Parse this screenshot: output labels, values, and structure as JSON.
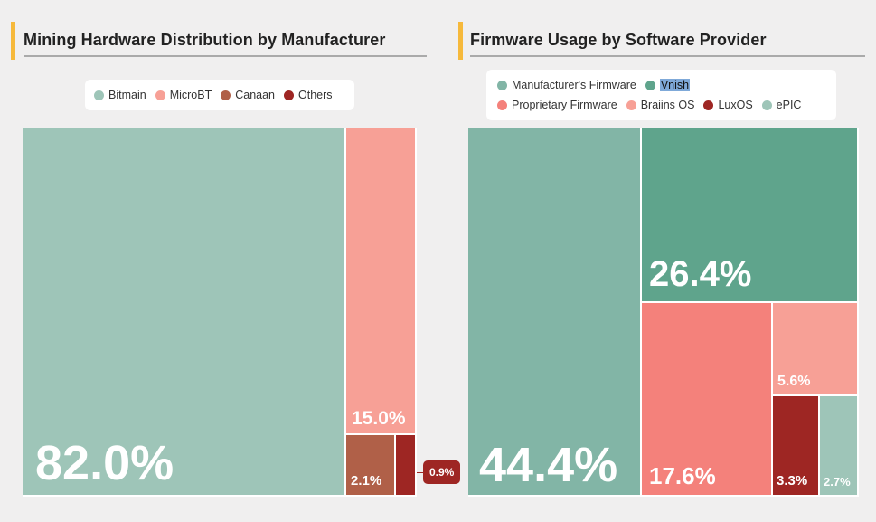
{
  "chart_data": [
    {
      "type": "treemap",
      "title": "Mining Hardware Distribution by Manufacturer",
      "legend_position": "top-center",
      "series": [
        {
          "name": "Bitmain",
          "value": 82.0,
          "label": "82.0%",
          "color": "#9ec5b8"
        },
        {
          "name": "MicroBT",
          "value": 15.0,
          "label": "15.0%",
          "color": "#f7a096"
        },
        {
          "name": "Canaan",
          "value": 2.1,
          "label": "2.1%",
          "color": "#b06048"
        },
        {
          "name": "Others",
          "value": 0.9,
          "label": "0.9%",
          "color": "#9e2623"
        }
      ]
    },
    {
      "type": "treemap",
      "title": "Firmware Usage by Software Provider",
      "legend_position": "top-center",
      "series": [
        {
          "name": "Manufacturer's Firmware",
          "value": 44.4,
          "label": "44.4%",
          "color": "#82b5a6"
        },
        {
          "name": "Vnish",
          "value": 26.4,
          "label": "26.4%",
          "color": "#5fa48c"
        },
        {
          "name": "Proprietary Firmware",
          "value": 17.6,
          "label": "17.6%",
          "color": "#f4817b"
        },
        {
          "name": "Braiins OS",
          "value": 5.6,
          "label": "5.6%",
          "color": "#f7a096"
        },
        {
          "name": "LuxOS",
          "value": 3.3,
          "label": "3.3%",
          "color": "#9e2623"
        },
        {
          "name": "ePIC",
          "value": 2.7,
          "label": "2.7%",
          "color": "#9ec5b8"
        }
      ]
    }
  ]
}
